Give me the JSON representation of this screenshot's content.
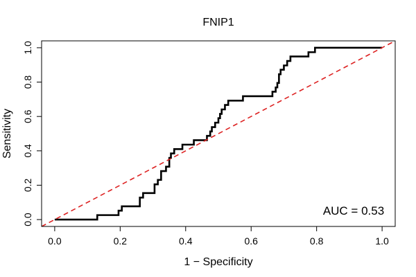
{
  "chart_data": {
    "type": "line",
    "title": "FNIP1",
    "xlabel": "1 − Specificity",
    "ylabel": "Sensitivity",
    "xlim": [
      -0.04,
      1.04
    ],
    "ylim": [
      -0.04,
      1.04
    ],
    "xticks": [
      0.0,
      0.2,
      0.4,
      0.6,
      0.8,
      1.0
    ],
    "yticks": [
      0.0,
      0.2,
      0.4,
      0.6,
      0.8,
      1.0
    ],
    "xtick_labels": [
      "0.0",
      "0.2",
      "0.4",
      "0.6",
      "0.8",
      "1.0"
    ],
    "ytick_labels": [
      "0.0",
      "0.2",
      "0.4",
      "0.6",
      "0.8",
      "1.0"
    ],
    "grid": false,
    "annotation": "AUC = 0.53",
    "series": [
      {
        "name": "ROC",
        "color": "#000000",
        "points": [
          [
            0.0,
            0.0
          ],
          [
            0.13,
            0.0
          ],
          [
            0.13,
            0.026
          ],
          [
            0.195,
            0.026
          ],
          [
            0.195,
            0.052
          ],
          [
            0.205,
            0.052
          ],
          [
            0.205,
            0.077
          ],
          [
            0.26,
            0.077
          ],
          [
            0.26,
            0.128
          ],
          [
            0.27,
            0.128
          ],
          [
            0.27,
            0.154
          ],
          [
            0.305,
            0.154
          ],
          [
            0.305,
            0.205
          ],
          [
            0.315,
            0.205
          ],
          [
            0.315,
            0.231
          ],
          [
            0.325,
            0.231
          ],
          [
            0.325,
            0.282
          ],
          [
            0.34,
            0.282
          ],
          [
            0.34,
            0.308
          ],
          [
            0.35,
            0.308
          ],
          [
            0.35,
            0.359
          ],
          [
            0.355,
            0.359
          ],
          [
            0.355,
            0.385
          ],
          [
            0.365,
            0.385
          ],
          [
            0.365,
            0.41
          ],
          [
            0.39,
            0.41
          ],
          [
            0.39,
            0.436
          ],
          [
            0.425,
            0.436
          ],
          [
            0.425,
            0.462
          ],
          [
            0.465,
            0.462
          ],
          [
            0.465,
            0.487
          ],
          [
            0.475,
            0.487
          ],
          [
            0.475,
            0.513
          ],
          [
            0.48,
            0.513
          ],
          [
            0.48,
            0.538
          ],
          [
            0.49,
            0.538
          ],
          [
            0.49,
            0.564
          ],
          [
            0.5,
            0.564
          ],
          [
            0.5,
            0.59
          ],
          [
            0.505,
            0.59
          ],
          [
            0.505,
            0.615
          ],
          [
            0.51,
            0.615
          ],
          [
            0.51,
            0.641
          ],
          [
            0.52,
            0.641
          ],
          [
            0.52,
            0.667
          ],
          [
            0.53,
            0.667
          ],
          [
            0.53,
            0.692
          ],
          [
            0.575,
            0.692
          ],
          [
            0.575,
            0.718
          ],
          [
            0.665,
            0.718
          ],
          [
            0.665,
            0.744
          ],
          [
            0.675,
            0.744
          ],
          [
            0.675,
            0.769
          ],
          [
            0.68,
            0.769
          ],
          [
            0.68,
            0.795
          ],
          [
            0.685,
            0.795
          ],
          [
            0.685,
            0.846
          ],
          [
            0.69,
            0.846
          ],
          [
            0.69,
            0.872
          ],
          [
            0.7,
            0.872
          ],
          [
            0.7,
            0.897
          ],
          [
            0.71,
            0.897
          ],
          [
            0.71,
            0.923
          ],
          [
            0.72,
            0.923
          ],
          [
            0.72,
            0.949
          ],
          [
            0.775,
            0.949
          ],
          [
            0.775,
            0.974
          ],
          [
            0.795,
            0.974
          ],
          [
            0.795,
            1.0
          ],
          [
            1.0,
            1.0
          ]
        ]
      },
      {
        "name": "reference",
        "color": "#dd2222",
        "dashed": true,
        "points": [
          [
            -0.04,
            -0.04
          ],
          [
            1.04,
            1.04
          ]
        ]
      }
    ]
  }
}
